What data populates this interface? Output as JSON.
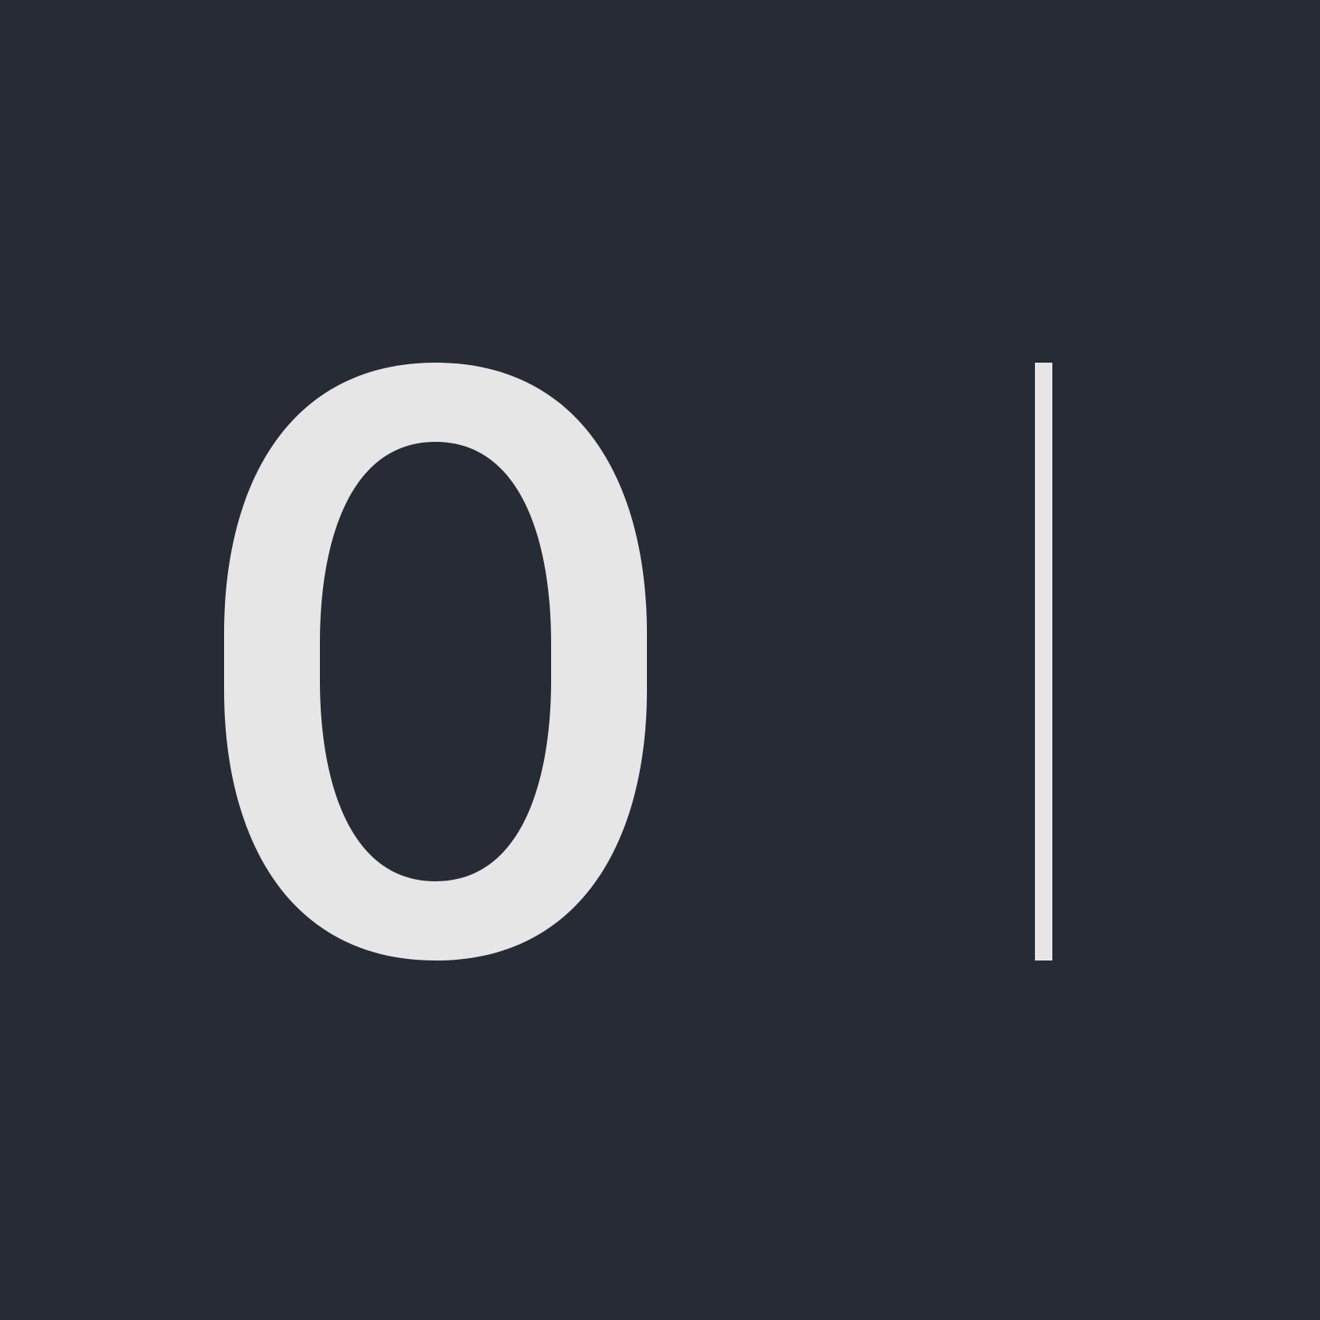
{
  "display": {
    "value": "0"
  },
  "colors": {
    "background": "#272b35",
    "foreground": "#e6e6e6"
  },
  "icons": {
    "cursor": "text-cursor-icon"
  }
}
